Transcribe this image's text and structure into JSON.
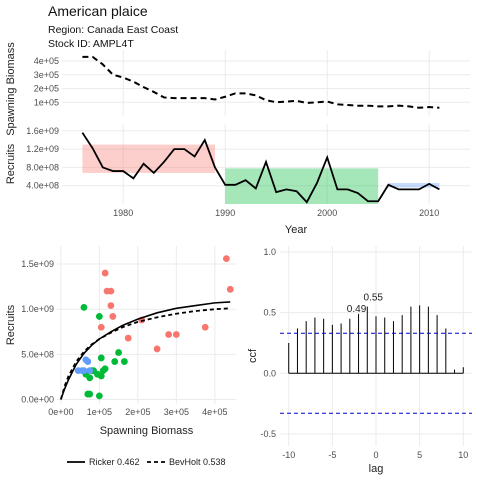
{
  "header": {
    "title": "American plaice",
    "region": "Region: Canada East Coast",
    "stock_id": "Stock ID: AMPL4T"
  },
  "chart_data": [
    {
      "id": "biomass",
      "type": "line",
      "ylabel": "Spawning Biomass",
      "yticks": [
        100000,
        200000,
        300000,
        400000
      ],
      "ytick_labels": [
        "1e+05",
        "2e+05",
        "3e+05",
        "4e+05"
      ],
      "ylim": [
        0,
        480000
      ],
      "xlim": [
        1974,
        2014
      ],
      "grid": true,
      "line_style": "dashed",
      "x": [
        1976,
        1977,
        1978,
        1979,
        1980,
        1981,
        1982,
        1983,
        1984,
        1985,
        1986,
        1987,
        1988,
        1989,
        1990,
        1991,
        1992,
        1993,
        1994,
        1995,
        1996,
        1997,
        1998,
        1999,
        2000,
        2001,
        2002,
        2003,
        2004,
        2005,
        2006,
        2007,
        2008,
        2009,
        2010,
        2011
      ],
      "y": [
        430000,
        430000,
        375000,
        300000,
        280000,
        250000,
        210000,
        175000,
        135000,
        130000,
        130000,
        130000,
        130000,
        120000,
        140000,
        165000,
        165000,
        150000,
        115000,
        100000,
        105000,
        110000,
        95000,
        100000,
        105000,
        85000,
        80000,
        75000,
        75000,
        70000,
        70000,
        75000,
        70000,
        60000,
        65000,
        60000
      ]
    },
    {
      "id": "recruits",
      "type": "line",
      "ylabel": "Recruits",
      "xlabel": "Year",
      "xticks": [
        1980,
        1990,
        2000,
        2010
      ],
      "yticks": [
        400000000,
        800000000,
        1200000000,
        1600000000
      ],
      "ytick_labels": [
        "4.0e+08",
        "8.0e+08",
        "1.2e+09",
        "1.6e+09"
      ],
      "ylim": [
        0,
        1750000000
      ],
      "xlim": [
        1974,
        2014
      ],
      "grid": true,
      "regimes": [
        {
          "x0": 1976,
          "x1": 1989,
          "y0": 680000000,
          "y1": 1300000000,
          "color": "#F8766D"
        },
        {
          "x0": 1990,
          "x1": 2005,
          "y0": 0,
          "y1": 780000000,
          "color": "#00BA38"
        },
        {
          "x0": 2006,
          "x1": 2011,
          "y0": 360000000,
          "y1": 460000000,
          "color": "#619CFF"
        }
      ],
      "x": [
        1976,
        1977,
        1978,
        1979,
        1980,
        1981,
        1982,
        1983,
        1984,
        1985,
        1986,
        1987,
        1988,
        1989,
        1990,
        1991,
        1992,
        1993,
        1994,
        1995,
        1996,
        1997,
        1998,
        1999,
        2000,
        2001,
        2002,
        2003,
        2004,
        2005,
        2006,
        2007,
        2008,
        2009,
        2010,
        2011
      ],
      "y": [
        1560000000,
        1220000000,
        800000000,
        720000000,
        720000000,
        560000000,
        880000000,
        680000000,
        920000000,
        1200000000,
        1200000000,
        1040000000,
        1400000000,
        800000000,
        420000000,
        420000000,
        520000000,
        340000000,
        920000000,
        260000000,
        320000000,
        280000000,
        40000000,
        460000000,
        1020000000,
        320000000,
        320000000,
        240000000,
        60000000,
        60000000,
        420000000,
        320000000,
        320000000,
        320000000,
        440000000,
        320000000
      ]
    },
    {
      "id": "stock-recruit",
      "type": "scatter",
      "xlabel": "Spawning Biomass",
      "ylabel": "Recruits",
      "xticks": [
        0,
        100000,
        200000,
        300000,
        400000
      ],
      "xtick_labels": [
        "0e+00",
        "1e+05",
        "2e+05",
        "3e+05",
        "4e+05"
      ],
      "yticks": [
        0,
        500000000,
        1000000000,
        1500000000
      ],
      "ytick_labels": [
        "0.0e+00",
        "5.0e+08",
        "1.0e+09",
        "1.5e+09"
      ],
      "xlim": [
        -10000,
        455000
      ],
      "ylim": [
        -50000000,
        1700000000
      ],
      "grid": true,
      "legend": {
        "placement": "bottom",
        "items": [
          {
            "label": "Ricker 0.462",
            "style": "solid"
          },
          {
            "label": "BevHolt 0.538",
            "style": "dashed"
          }
        ]
      },
      "groups": [
        {
          "color": "#F8766D",
          "points": [
            [
              430000,
              1560000000
            ],
            [
              440000,
              1220000000
            ],
            [
              375000,
              800000000
            ],
            [
              300000,
              720000000
            ],
            [
              280000,
              720000000
            ],
            [
              250000,
              560000000
            ],
            [
              210000,
              880000000
            ],
            [
              175000,
              680000000
            ],
            [
              135000,
              920000000
            ],
            [
              130000,
              1200000000
            ],
            [
              120000,
              1200000000
            ],
            [
              130000,
              1040000000
            ],
            [
              115000,
              1400000000
            ],
            [
              105000,
              800000000
            ]
          ]
        },
        {
          "color": "#00BA38",
          "points": [
            [
              140000,
              420000000
            ],
            [
              165000,
              420000000
            ],
            [
              150000,
              520000000
            ],
            [
              115000,
              340000000
            ],
            [
              100000,
              920000000
            ],
            [
              105000,
              260000000
            ],
            [
              110000,
              320000000
            ],
            [
              95000,
              280000000
            ],
            [
              100000,
              40000000
            ],
            [
              105000,
              460000000
            ],
            [
              60000,
              1020000000
            ],
            [
              85000,
              320000000
            ],
            [
              80000,
              320000000
            ],
            [
              75000,
              240000000
            ],
            [
              70000,
              60000000
            ],
            [
              75000,
              60000000
            ],
            [
              65000,
              280000000
            ]
          ]
        },
        {
          "color": "#619CFF",
          "points": [
            [
              70000,
              420000000
            ],
            [
              75000,
              320000000
            ],
            [
              55000,
              320000000
            ],
            [
              60000,
              320000000
            ],
            [
              65000,
              440000000
            ],
            [
              45000,
              320000000
            ]
          ]
        }
      ],
      "curves": [
        {
          "name": "Ricker 0.462",
          "style": "solid",
          "x": [
            0,
            10000,
            20000,
            40000,
            60000,
            80000,
            100000,
            130000,
            160000,
            200000,
            250000,
            300000,
            350000,
            400000,
            440000
          ],
          "y": [
            0,
            120000000,
            220000000,
            390000000,
            510000000,
            600000000,
            670000000,
            750000000,
            820000000,
            890000000,
            960000000,
            1010000000,
            1040000000,
            1070000000,
            1080000000
          ]
        },
        {
          "name": "BevHolt 0.538",
          "style": "dashed",
          "x": [
            0,
            10000,
            20000,
            40000,
            60000,
            80000,
            100000,
            130000,
            160000,
            200000,
            250000,
            300000,
            350000,
            400000,
            440000
          ],
          "y": [
            0,
            150000000,
            260000000,
            420000000,
            530000000,
            610000000,
            670000000,
            740000000,
            800000000,
            860000000,
            910000000,
            950000000,
            980000000,
            1000000000,
            1010000000
          ]
        }
      ]
    },
    {
      "id": "ccf",
      "type": "bar",
      "xlabel": "lag",
      "ylabel": "ccf",
      "xticks": [
        -10,
        -5,
        0,
        5,
        10
      ],
      "yticks": [
        -0.5,
        0,
        0.5,
        1.0
      ],
      "ytick_labels": [
        "-0.5",
        "0.0",
        "0.5",
        "1.0"
      ],
      "xlim": [
        -11,
        11
      ],
      "ylim": [
        -0.6,
        1.05
      ],
      "grid": true,
      "significance": [
        0.33,
        -0.33
      ],
      "lags": [
        -10,
        -9,
        -8,
        -7,
        -6,
        -5,
        -4,
        -3,
        -2,
        -1,
        0,
        1,
        2,
        3,
        4,
        5,
        6,
        7,
        8,
        9,
        10
      ],
      "values": [
        0.25,
        0.37,
        0.43,
        0.46,
        0.45,
        0.4,
        0.41,
        0.45,
        0.49,
        0.55,
        0.47,
        0.46,
        0.43,
        0.48,
        0.55,
        0.56,
        0.55,
        0.48,
        0.37,
        0.03,
        0.05
      ],
      "annotations": [
        {
          "lag": -1,
          "value": 0.55,
          "text": "0.55"
        },
        {
          "lag": -2,
          "value": 0.49,
          "text": "0.49"
        }
      ]
    }
  ]
}
